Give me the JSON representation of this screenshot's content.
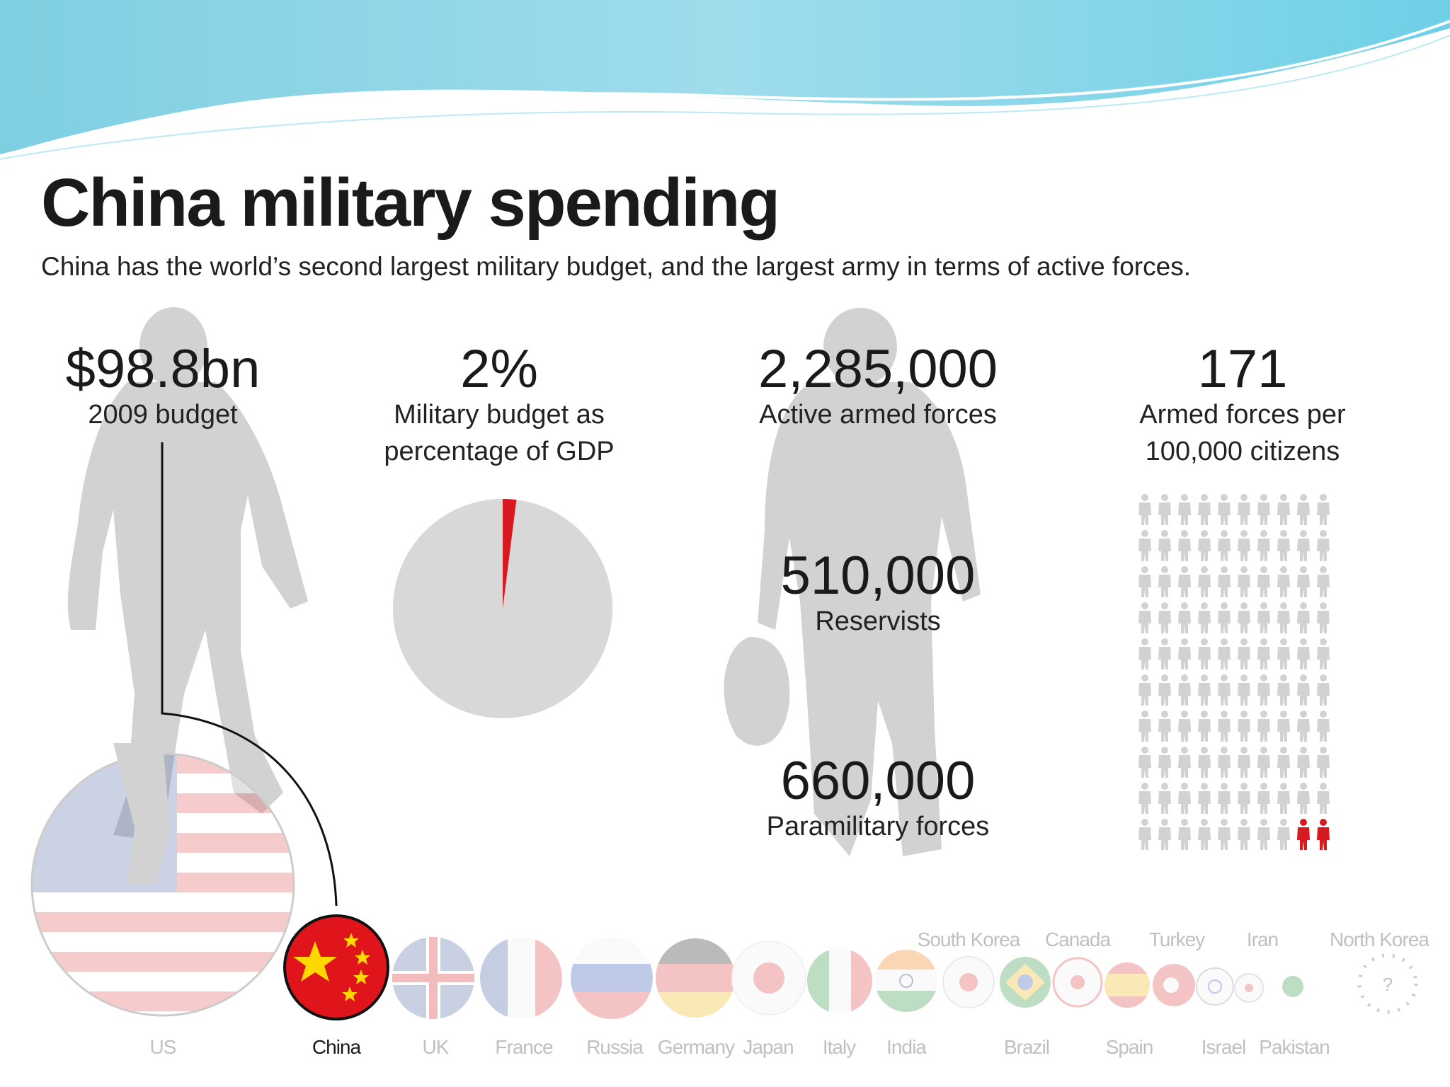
{
  "title": "China military spending",
  "subtitle": "China has the world’s second largest military budget, and the largest army in terms of active forces.",
  "stats": {
    "budget": {
      "value": "$98.8bn",
      "label": "2009 budget"
    },
    "gdp": {
      "value": "2%",
      "label_line1": "Military budget as",
      "label_line2": "percentage of GDP",
      "fraction": 0.02
    },
    "active": {
      "value": "2,285,000",
      "label": "Active armed forces"
    },
    "per_capita": {
      "value": "171",
      "label_line1": "Armed forces per",
      "label_line2": "100,000 citizens"
    },
    "reservists": {
      "value": "510,000",
      "label": "Reservists"
    },
    "paramilitary": {
      "value": "660,000",
      "label": "Paramilitary forces"
    }
  },
  "countries_bottom": [
    "US",
    "China",
    "UK",
    "France",
    "Russia",
    "Germany",
    "Japan",
    "Italy",
    "India",
    "Brazil",
    "Spain",
    "Israel",
    "Pakistan"
  ],
  "countries_top": [
    "South Korea",
    "Canada",
    "Turkey",
    "Iran",
    "North Korea"
  ],
  "highlight_country": "China",
  "colors": {
    "accent": "#d71920",
    "silhouette": "#d2d2d2",
    "faded_label": "#c0c0c0",
    "wave": "#7fd3e6"
  },
  "icons": [
    "soldier-silhouette-icon",
    "person-icon",
    "flag-icon"
  ]
}
